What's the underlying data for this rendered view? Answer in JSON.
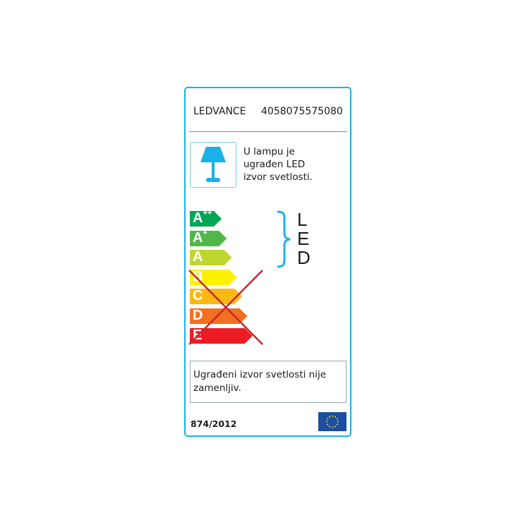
{
  "header": {
    "brand": "LEDVANCE",
    "ean": "4058075575080"
  },
  "lamp_text": [
    "U lampu je",
    "ugrađen LED",
    "izvor svetlosti."
  ],
  "classes": [
    {
      "label": "A",
      "sup": "++",
      "color": "#00a651"
    },
    {
      "label": "A",
      "sup": "+",
      "color": "#50b848"
    },
    {
      "label": "A",
      "sup": "",
      "color": "#bed630"
    },
    {
      "label": "B",
      "sup": "",
      "color": "#fff200"
    },
    {
      "label": "C",
      "sup": "",
      "color": "#fdb913"
    },
    {
      "label": "D",
      "sup": "",
      "color": "#f37021"
    },
    {
      "label": "E",
      "sup": "",
      "color": "#ed1c24"
    }
  ],
  "led_letters": [
    "L",
    "E",
    "D"
  ],
  "crossed_out_classes": [
    "B",
    "C",
    "D",
    "E"
  ],
  "accent_color": "#1ab0e8",
  "cross_color": "#c4262e",
  "note": "Ugrađeni izvor svetlosti nije zamenljiv.",
  "regulation": "874/2012",
  "flag": "eu-flag-icon"
}
